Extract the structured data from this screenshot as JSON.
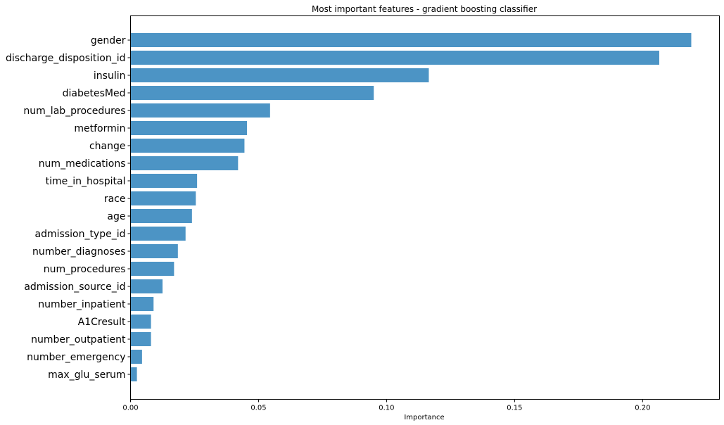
{
  "chart_data": {
    "type": "bar",
    "orientation": "horizontal",
    "title": "Most important features - gradient boosting classifier",
    "xlabel": "Importance",
    "ylabel": "",
    "xlim": [
      0,
      0.23
    ],
    "x_ticks": [
      "0.00",
      "0.05",
      "0.10",
      "0.15",
      "0.20"
    ],
    "grid": false,
    "bar_color": "#4c94c5",
    "categories": [
      "gender",
      "discharge_disposition_id",
      "insulin",
      "diabetesMed",
      "num_lab_procedures",
      "metformin",
      "change",
      "num_medications",
      "time_in_hospital",
      "race",
      "age",
      "admission_type_id",
      "number_diagnoses",
      "num_procedures",
      "admission_source_id",
      "number_inpatient",
      "A1Cresult",
      "number_outpatient",
      "number_emergency",
      "max_glu_serum"
    ],
    "values": [
      0.219,
      0.2065,
      0.1165,
      0.095,
      0.0545,
      0.0455,
      0.0445,
      0.042,
      0.026,
      0.0255,
      0.024,
      0.0215,
      0.0185,
      0.017,
      0.0125,
      0.009,
      0.008,
      0.008,
      0.0045,
      0.0025
    ]
  }
}
